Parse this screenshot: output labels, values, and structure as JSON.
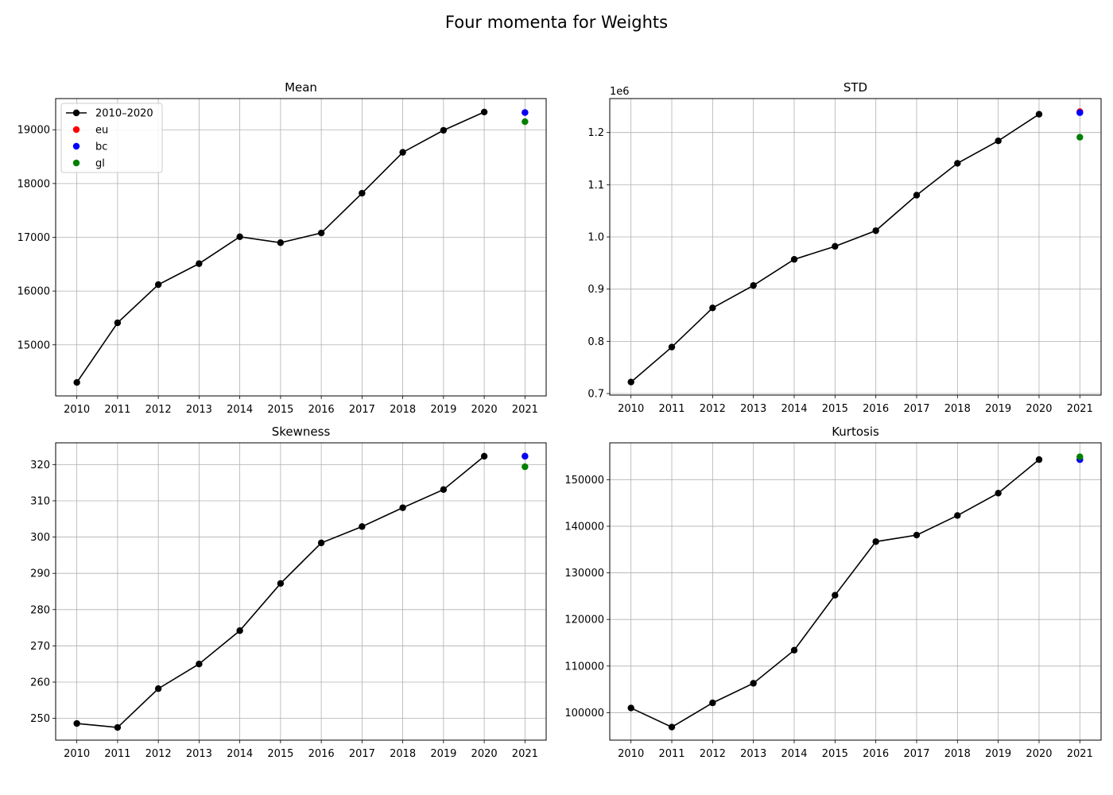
{
  "figure": {
    "title": "Four momenta for Weights"
  },
  "chart_data": [
    {
      "type": "line",
      "title": "Mean",
      "offset_label": "",
      "x": [
        2010,
        2011,
        2012,
        2013,
        2014,
        2015,
        2016,
        2017,
        2018,
        2019,
        2020
      ],
      "x_ticks": [
        2010,
        2011,
        2012,
        2013,
        2014,
        2015,
        2016,
        2017,
        2018,
        2019,
        2020,
        2021
      ],
      "y_ticks": [
        15000,
        16000,
        17000,
        18000,
        19000
      ],
      "ylim": [
        14050,
        19580
      ],
      "series": [
        {
          "name": "2010–2020",
          "color": "#000000",
          "values": [
            14300,
            15410,
            16120,
            16510,
            17010,
            16900,
            17080,
            17820,
            18580,
            18990,
            19330
          ]
        }
      ],
      "points_2021": [
        {
          "name": "eu",
          "color": "#ff0000",
          "value": 19320
        },
        {
          "name": "bc",
          "color": "#0000ff",
          "value": 19320
        },
        {
          "name": "gl",
          "color": "#008000",
          "value": 19150
        }
      ],
      "legend": "upper-left",
      "grid": true
    },
    {
      "type": "line",
      "title": "STD",
      "offset_label": "1e6",
      "x": [
        2010,
        2011,
        2012,
        2013,
        2014,
        2015,
        2016,
        2017,
        2018,
        2019,
        2020
      ],
      "x_ticks": [
        2010,
        2011,
        2012,
        2013,
        2014,
        2015,
        2016,
        2017,
        2018,
        2019,
        2020,
        2021
      ],
      "y_ticks": [
        "0.7",
        "0.8",
        "0.9",
        "1.0",
        "1.1",
        "1.2"
      ],
      "ylim": [
        0.697,
        1.265
      ],
      "series": [
        {
          "name": "2010–2020",
          "color": "#000000",
          "values": [
            0.722,
            0.789,
            0.864,
            0.907,
            0.957,
            0.982,
            1.012,
            1.08,
            1.141,
            1.184,
            1.235
          ]
        }
      ],
      "points_2021": [
        {
          "name": "eu",
          "color": "#ff0000",
          "value": 1.24
        },
        {
          "name": "bc",
          "color": "#0000ff",
          "value": 1.238
        },
        {
          "name": "gl",
          "color": "#008000",
          "value": 1.191
        }
      ],
      "legend": "",
      "grid": true
    },
    {
      "type": "line",
      "title": "Skewness",
      "offset_label": "",
      "x": [
        2010,
        2011,
        2012,
        2013,
        2014,
        2015,
        2016,
        2017,
        2018,
        2019,
        2020
      ],
      "x_ticks": [
        2010,
        2011,
        2012,
        2013,
        2014,
        2015,
        2016,
        2017,
        2018,
        2019,
        2020,
        2021
      ],
      "y_ticks": [
        250,
        260,
        270,
        280,
        290,
        300,
        310,
        320
      ],
      "ylim": [
        244,
        326
      ],
      "series": [
        {
          "name": "2010–2020",
          "color": "#000000",
          "values": [
            248.6,
            247.5,
            258.2,
            265.0,
            274.2,
            287.2,
            298.4,
            302.9,
            308.1,
            313.1,
            322.3
          ]
        }
      ],
      "points_2021": [
        {
          "name": "eu",
          "color": "#ff0000",
          "value": 322.3
        },
        {
          "name": "bc",
          "color": "#0000ff",
          "value": 322.3
        },
        {
          "name": "gl",
          "color": "#008000",
          "value": 319.4
        }
      ],
      "legend": "",
      "grid": true
    },
    {
      "type": "line",
      "title": "Kurtosis",
      "offset_label": "",
      "x": [
        2010,
        2011,
        2012,
        2013,
        2014,
        2015,
        2016,
        2017,
        2018,
        2019,
        2020
      ],
      "x_ticks": [
        2010,
        2011,
        2012,
        2013,
        2014,
        2015,
        2016,
        2017,
        2018,
        2019,
        2020,
        2021
      ],
      "y_ticks": [
        100000,
        110000,
        120000,
        130000,
        140000,
        150000
      ],
      "ylim": [
        94100,
        157900
      ],
      "series": [
        {
          "name": "2010–2020",
          "color": "#000000",
          "values": [
            101000,
            96900,
            102100,
            106300,
            113400,
            125200,
            136700,
            138100,
            142300,
            147100,
            154300
          ]
        }
      ],
      "points_2021": [
        {
          "name": "eu",
          "color": "#ff0000",
          "value": 154300
        },
        {
          "name": "bc",
          "color": "#0000ff",
          "value": 154300
        },
        {
          "name": "gl",
          "color": "#008000",
          "value": 154900
        }
      ],
      "legend": "",
      "grid": true
    }
  ]
}
